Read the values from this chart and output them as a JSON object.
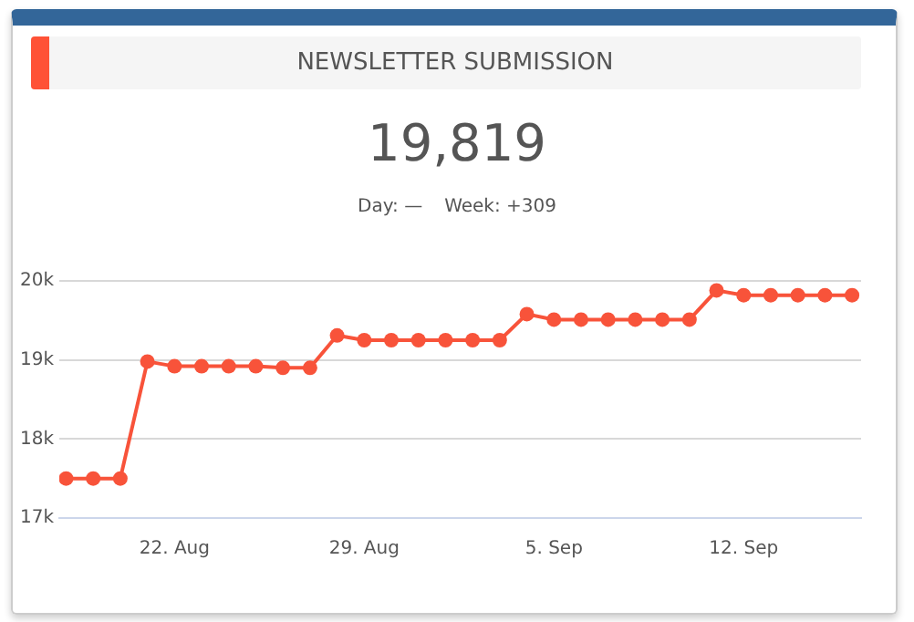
{
  "chart_data": {
    "type": "line",
    "title": "NEWSLETTER SUBMISSION",
    "annotations": [
      "19,819",
      "Day: —",
      "Week: +309"
    ],
    "x": [
      "--08-18",
      "--08-19",
      "--08-20",
      "--08-21",
      "--08-22",
      "--08-23",
      "--08-24",
      "--08-25",
      "--08-26",
      "--08-27",
      "--08-28",
      "--08-29",
      "--08-30",
      "--08-31",
      "--09-01",
      "--09-02",
      "--09-03",
      "--09-04",
      "--09-05",
      "--09-06",
      "--09-07",
      "--09-08",
      "--09-09",
      "--09-10",
      "--09-11",
      "--09-12",
      "--09-13",
      "--09-14",
      "--09-15",
      "--09-16"
    ],
    "series": [
      {
        "color": "#f8533a",
        "values": [
          17500,
          17500,
          17500,
          18980,
          18920,
          18920,
          18920,
          18920,
          18900,
          18900,
          19310,
          19250,
          19250,
          19250,
          19250,
          19250,
          19250,
          19580,
          19510,
          19510,
          19510,
          19510,
          19510,
          19510,
          19880,
          19819,
          19819,
          19819,
          19819,
          19819
        ]
      }
    ],
    "xlim": [
      "--08-17T18:00",
      "--09-16T08:00"
    ],
    "xticks": [
      {
        "value": "--08-22",
        "label": "22. Aug"
      },
      {
        "value": "--08-29",
        "label": "29. Aug"
      },
      {
        "value": "--09-05",
        "label": "5. Sep"
      },
      {
        "value": "--09-12",
        "label": "12. Sep"
      }
    ],
    "ylim": [
      17000,
      20000
    ],
    "yticks": [
      {
        "value": 17000,
        "label": "17k"
      },
      {
        "value": 18000,
        "label": "18k"
      },
      {
        "value": 19000,
        "label": "19k"
      },
      {
        "value": 20000,
        "label": "20k"
      }
    ],
    "grid": "y",
    "legend": false,
    "marker": "circle",
    "line_style": "solid"
  }
}
